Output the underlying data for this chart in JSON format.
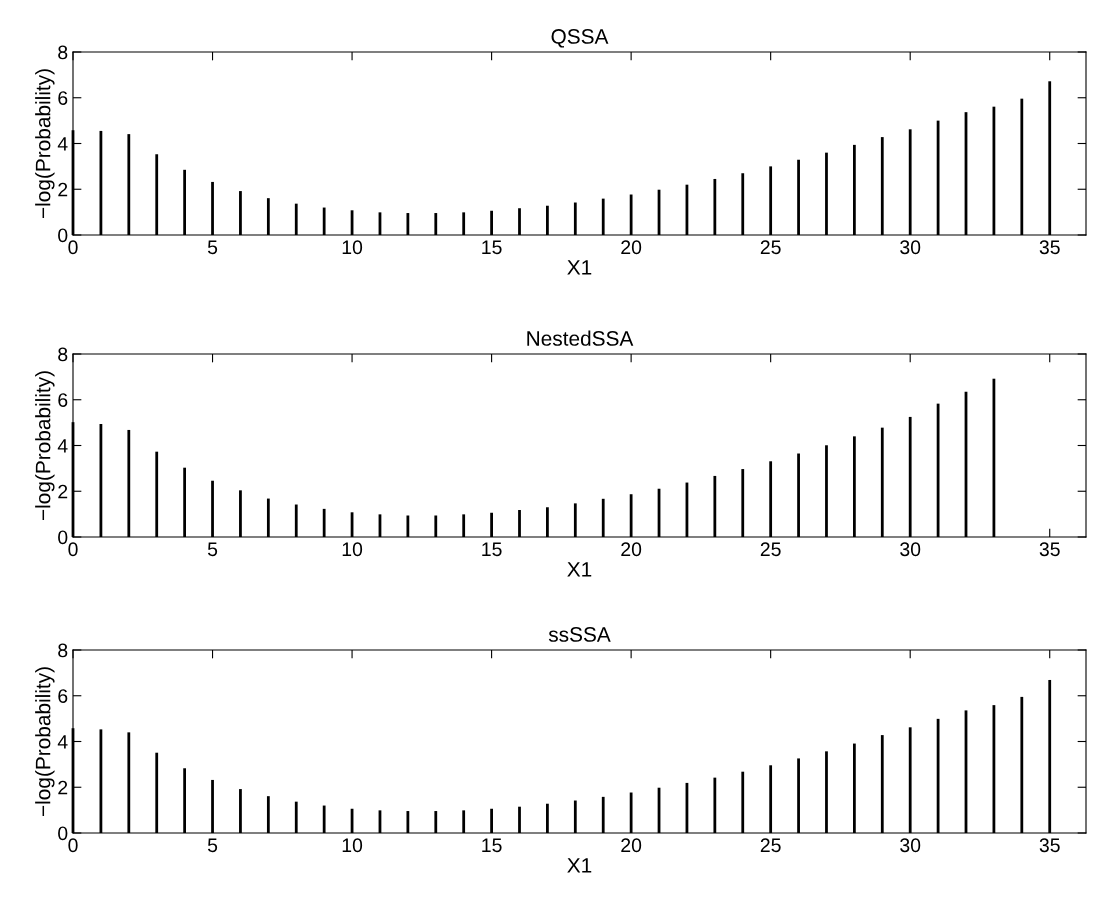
{
  "chart_data": [
    {
      "type": "bar",
      "title": "QSSA",
      "xlabel": "X1",
      "ylabel": "−log(Probability)",
      "xlim": [
        0,
        36.3
      ],
      "xticks": [
        0,
        5,
        10,
        15,
        20,
        25,
        30,
        35
      ],
      "ylim": [
        0,
        8
      ],
      "yticks": [
        0,
        2,
        4,
        6,
        8
      ],
      "grid": false,
      "legend": false,
      "x": [
        0,
        1,
        2,
        3,
        4,
        5,
        6,
        7,
        8,
        9,
        10,
        11,
        12,
        13,
        14,
        15,
        16,
        17,
        18,
        19,
        20,
        21,
        22,
        23,
        24,
        25,
        26,
        27,
        28,
        29,
        30,
        31,
        32,
        33,
        34,
        35
      ],
      "series": [
        {
          "color": "#000000",
          "values": [
            4.58,
            4.55,
            4.41,
            3.53,
            2.85,
            2.32,
            1.92,
            1.61,
            1.37,
            1.2,
            1.08,
            0.99,
            0.96,
            0.96,
            0.99,
            1.06,
            1.17,
            1.28,
            1.42,
            1.59,
            1.77,
            1.98,
            2.2,
            2.45,
            2.7,
            3.0,
            3.29,
            3.6,
            3.94,
            4.28,
            4.62,
            5.0,
            5.37,
            5.61,
            5.96,
            6.72
          ]
        }
      ]
    },
    {
      "type": "bar",
      "title": "NestedSSA",
      "xlabel": "X1",
      "ylabel": "−log(Probability)",
      "xlim": [
        0,
        36.3
      ],
      "xticks": [
        0,
        5,
        10,
        15,
        20,
        25,
        30,
        35
      ],
      "ylim": [
        0,
        8
      ],
      "yticks": [
        0,
        2,
        4,
        6,
        8
      ],
      "grid": false,
      "legend": false,
      "x": [
        0,
        1,
        2,
        3,
        4,
        5,
        6,
        7,
        8,
        9,
        10,
        11,
        12,
        13,
        14,
        15,
        16,
        17,
        18,
        19,
        20,
        21,
        22,
        23,
        24,
        25,
        26,
        27,
        28,
        29,
        30,
        31,
        32,
        33
      ],
      "series": [
        {
          "color": "#000000",
          "values": [
            5.02,
            4.94,
            4.68,
            3.73,
            3.03,
            2.46,
            2.04,
            1.68,
            1.42,
            1.23,
            1.08,
            0.99,
            0.94,
            0.94,
            0.99,
            1.06,
            1.18,
            1.3,
            1.47,
            1.67,
            1.87,
            2.11,
            2.38,
            2.67,
            2.97,
            3.31,
            3.65,
            4.01,
            4.4,
            4.78,
            5.25,
            5.83,
            6.35,
            6.92
          ]
        }
      ]
    },
    {
      "type": "bar",
      "title": "ssSSA",
      "xlabel": "X1",
      "ylabel": "−log(Probability)",
      "xlim": [
        0,
        36.3
      ],
      "xticks": [
        0,
        5,
        10,
        15,
        20,
        25,
        30,
        35
      ],
      "ylim": [
        0,
        8
      ],
      "yticks": [
        0,
        2,
        4,
        6,
        8
      ],
      "grid": false,
      "legend": false,
      "x": [
        0,
        1,
        2,
        3,
        4,
        5,
        6,
        7,
        8,
        9,
        10,
        11,
        12,
        13,
        14,
        15,
        16,
        17,
        18,
        19,
        20,
        21,
        22,
        23,
        24,
        25,
        26,
        27,
        28,
        29,
        30,
        31,
        32,
        33,
        34,
        35
      ],
      "series": [
        {
          "color": "#000000",
          "values": [
            4.58,
            4.53,
            4.4,
            3.51,
            2.83,
            2.32,
            1.92,
            1.61,
            1.37,
            1.2,
            1.06,
            0.99,
            0.96,
            0.96,
            0.99,
            1.06,
            1.15,
            1.28,
            1.42,
            1.58,
            1.77,
            1.98,
            2.19,
            2.42,
            2.68,
            2.96,
            3.26,
            3.57,
            3.91,
            4.28,
            4.62,
            4.99,
            5.36,
            5.59,
            5.95,
            6.69
          ]
        }
      ]
    }
  ]
}
